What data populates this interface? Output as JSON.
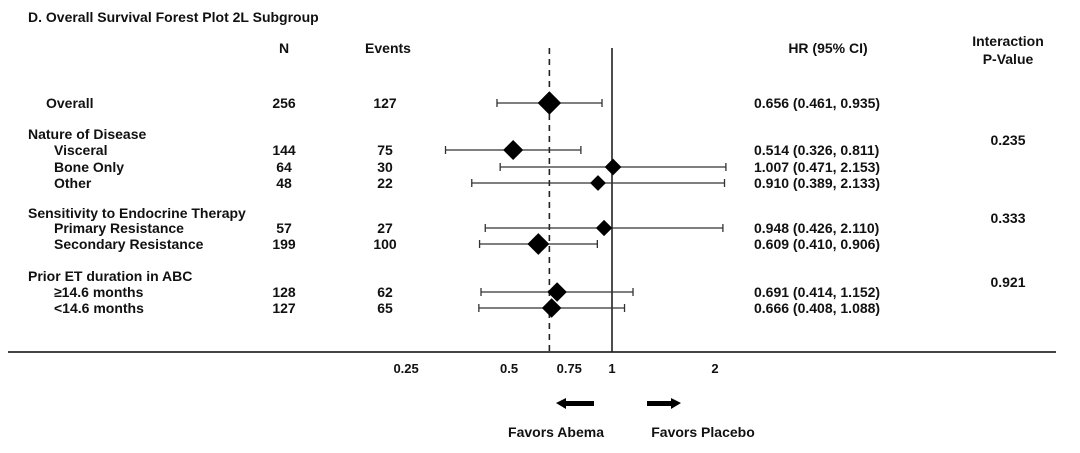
{
  "chart_data": {
    "type": "forest",
    "title": "D. Overall Survival Forest Plot 2L Subgroup",
    "headers": {
      "n": "N",
      "events": "Events",
      "hr": "HR (95% CI)",
      "pvalue_line1": "Interaction",
      "pvalue_line2": "P-Value"
    },
    "x_scale": "log",
    "x_ticks": [
      {
        "value": 0.25,
        "label": "0.25"
      },
      {
        "value": 0.5,
        "label": "0.5"
      },
      {
        "value": 0.75,
        "label": "0.75"
      },
      {
        "value": 1,
        "label": "1"
      },
      {
        "value": 2,
        "label": "2"
      }
    ],
    "reference_line": 1,
    "overall_line": 0.656,
    "favors_left": "Favors Abema",
    "favors_right": "Favors Placebo",
    "groups": [
      {
        "heading": "",
        "rows": [
          {
            "label": "Overall",
            "n": "256",
            "events": "127",
            "hr": 0.656,
            "lo": 0.461,
            "hi": 0.935,
            "ci_text": "0.656 (0.461, 0.935)",
            "p": ""
          }
        ]
      },
      {
        "heading": "Nature of Disease",
        "rows": [
          {
            "label": "Visceral",
            "n": "144",
            "events": "75",
            "hr": 0.514,
            "lo": 0.326,
            "hi": 0.811,
            "ci_text": "0.514 (0.326, 0.811)",
            "p": "0.235"
          },
          {
            "label": "Bone Only",
            "n": "64",
            "events": "30",
            "hr": 1.007,
            "lo": 0.471,
            "hi": 2.153,
            "ci_text": "1.007 (0.471, 2.153)",
            "p": ""
          },
          {
            "label": "Other",
            "n": "48",
            "events": "22",
            "hr": 0.91,
            "lo": 0.389,
            "hi": 2.133,
            "ci_text": "0.910 (0.389, 2.133)",
            "p": ""
          }
        ]
      },
      {
        "heading": "Sensitivity to Endocrine Therapy",
        "rows": [
          {
            "label": "Primary Resistance",
            "n": "57",
            "events": "27",
            "hr": 0.948,
            "lo": 0.426,
            "hi": 2.11,
            "ci_text": "0.948 (0.426, 2.110)",
            "p": "0.333"
          },
          {
            "label": "Secondary Resistance",
            "n": "199",
            "events": "100",
            "hr": 0.609,
            "lo": 0.41,
            "hi": 0.906,
            "ci_text": "0.609 (0.410, 0.906)",
            "p": ""
          }
        ]
      },
      {
        "heading": "Prior ET duration in ABC",
        "rows": [
          {
            "label": "≥14.6 months",
            "n": "128",
            "events": "62",
            "hr": 0.691,
            "lo": 0.414,
            "hi": 1.152,
            "ci_text": "0.691 (0.414, 1.152)",
            "p": "0.921"
          },
          {
            "label": "<14.6 months",
            "n": "127",
            "events": "65",
            "hr": 0.666,
            "lo": 0.408,
            "hi": 1.088,
            "ci_text": "0.666 (0.408, 1.088)",
            "p": ""
          }
        ]
      }
    ]
  }
}
